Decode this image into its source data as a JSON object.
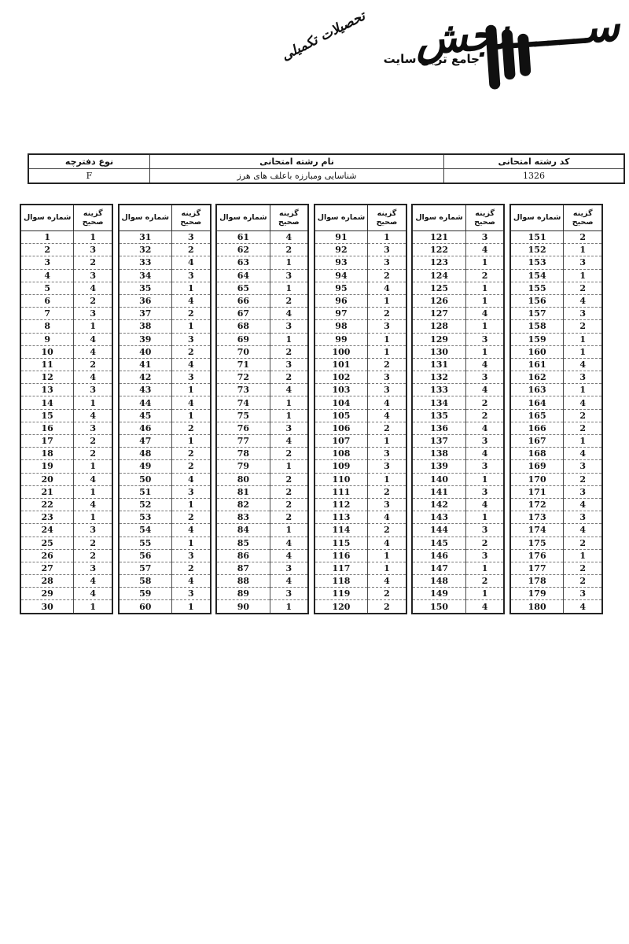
{
  "logo": {
    "brand": "ســــــنجش",
    "tagline": "جامع ترین سایت",
    "tagline_script": "تحصیلات تکمیلی"
  },
  "info": {
    "code_label": "کد رشته امتحانی",
    "name_label": "نام رشته امتحانی",
    "type_label": "نوع دفترچه",
    "code_value": "1326",
    "name_value": "شناسایی ومبارزه باعلف های هرز",
    "type_value": "F"
  },
  "answer_key": {
    "question_header": "شماره سوال",
    "answer_header": "گزینه صحیح",
    "blocks": [
      {
        "entries": [
          [
            1,
            1
          ],
          [
            2,
            3
          ],
          [
            3,
            2
          ],
          [
            4,
            3
          ],
          [
            5,
            4
          ],
          [
            6,
            2
          ],
          [
            7,
            3
          ],
          [
            8,
            1
          ],
          [
            9,
            4
          ],
          [
            10,
            4
          ],
          [
            11,
            2
          ],
          [
            12,
            4
          ],
          [
            13,
            3
          ],
          [
            14,
            1
          ],
          [
            15,
            4
          ],
          [
            16,
            3
          ],
          [
            17,
            2
          ],
          [
            18,
            2
          ],
          [
            19,
            1
          ],
          [
            20,
            4
          ],
          [
            21,
            1
          ],
          [
            22,
            4
          ],
          [
            23,
            1
          ],
          [
            24,
            3
          ],
          [
            25,
            2
          ],
          [
            26,
            2
          ],
          [
            27,
            3
          ],
          [
            28,
            4
          ],
          [
            29,
            4
          ],
          [
            30,
            1
          ]
        ]
      },
      {
        "entries": [
          [
            31,
            3
          ],
          [
            32,
            2
          ],
          [
            33,
            4
          ],
          [
            34,
            3
          ],
          [
            35,
            1
          ],
          [
            36,
            4
          ],
          [
            37,
            2
          ],
          [
            38,
            1
          ],
          [
            39,
            3
          ],
          [
            40,
            2
          ],
          [
            41,
            4
          ],
          [
            42,
            3
          ],
          [
            43,
            1
          ],
          [
            44,
            4
          ],
          [
            45,
            1
          ],
          [
            46,
            2
          ],
          [
            47,
            1
          ],
          [
            48,
            2
          ],
          [
            49,
            2
          ],
          [
            50,
            4
          ],
          [
            51,
            3
          ],
          [
            52,
            1
          ],
          [
            53,
            2
          ],
          [
            54,
            4
          ],
          [
            55,
            1
          ],
          [
            56,
            3
          ],
          [
            57,
            2
          ],
          [
            58,
            4
          ],
          [
            59,
            3
          ],
          [
            60,
            1
          ]
        ]
      },
      {
        "entries": [
          [
            61,
            4
          ],
          [
            62,
            2
          ],
          [
            63,
            1
          ],
          [
            64,
            3
          ],
          [
            65,
            1
          ],
          [
            66,
            2
          ],
          [
            67,
            4
          ],
          [
            68,
            3
          ],
          [
            69,
            1
          ],
          [
            70,
            2
          ],
          [
            71,
            3
          ],
          [
            72,
            2
          ],
          [
            73,
            4
          ],
          [
            74,
            1
          ],
          [
            75,
            1
          ],
          [
            76,
            3
          ],
          [
            77,
            4
          ],
          [
            78,
            2
          ],
          [
            79,
            1
          ],
          [
            80,
            2
          ],
          [
            81,
            2
          ],
          [
            82,
            2
          ],
          [
            83,
            2
          ],
          [
            84,
            1
          ],
          [
            85,
            4
          ],
          [
            86,
            4
          ],
          [
            87,
            3
          ],
          [
            88,
            4
          ],
          [
            89,
            3
          ],
          [
            90,
            1
          ]
        ]
      },
      {
        "entries": [
          [
            91,
            1
          ],
          [
            92,
            3
          ],
          [
            93,
            3
          ],
          [
            94,
            2
          ],
          [
            95,
            4
          ],
          [
            96,
            1
          ],
          [
            97,
            2
          ],
          [
            98,
            3
          ],
          [
            99,
            1
          ],
          [
            100,
            1
          ],
          [
            101,
            2
          ],
          [
            102,
            3
          ],
          [
            103,
            3
          ],
          [
            104,
            4
          ],
          [
            105,
            4
          ],
          [
            106,
            2
          ],
          [
            107,
            1
          ],
          [
            108,
            3
          ],
          [
            109,
            3
          ],
          [
            110,
            1
          ],
          [
            111,
            2
          ],
          [
            112,
            3
          ],
          [
            113,
            4
          ],
          [
            114,
            2
          ],
          [
            115,
            4
          ],
          [
            116,
            1
          ],
          [
            117,
            1
          ],
          [
            118,
            4
          ],
          [
            119,
            2
          ],
          [
            120,
            2
          ]
        ]
      },
      {
        "entries": [
          [
            121,
            3
          ],
          [
            122,
            4
          ],
          [
            123,
            1
          ],
          [
            124,
            2
          ],
          [
            125,
            1
          ],
          [
            126,
            1
          ],
          [
            127,
            4
          ],
          [
            128,
            1
          ],
          [
            129,
            3
          ],
          [
            130,
            1
          ],
          [
            131,
            4
          ],
          [
            132,
            3
          ],
          [
            133,
            4
          ],
          [
            134,
            2
          ],
          [
            135,
            2
          ],
          [
            136,
            4
          ],
          [
            137,
            3
          ],
          [
            138,
            4
          ],
          [
            139,
            3
          ],
          [
            140,
            1
          ],
          [
            141,
            3
          ],
          [
            142,
            4
          ],
          [
            143,
            1
          ],
          [
            144,
            3
          ],
          [
            145,
            2
          ],
          [
            146,
            3
          ],
          [
            147,
            1
          ],
          [
            148,
            2
          ],
          [
            149,
            1
          ],
          [
            150,
            4
          ]
        ]
      },
      {
        "entries": [
          [
            151,
            2
          ],
          [
            152,
            1
          ],
          [
            153,
            3
          ],
          [
            154,
            1
          ],
          [
            155,
            2
          ],
          [
            156,
            4
          ],
          [
            157,
            3
          ],
          [
            158,
            2
          ],
          [
            159,
            1
          ],
          [
            160,
            1
          ],
          [
            161,
            4
          ],
          [
            162,
            3
          ],
          [
            163,
            1
          ],
          [
            164,
            4
          ],
          [
            165,
            2
          ],
          [
            166,
            2
          ],
          [
            167,
            1
          ],
          [
            168,
            4
          ],
          [
            169,
            3
          ],
          [
            170,
            2
          ],
          [
            171,
            3
          ],
          [
            172,
            4
          ],
          [
            173,
            3
          ],
          [
            174,
            4
          ],
          [
            175,
            2
          ],
          [
            176,
            1
          ],
          [
            177,
            2
          ],
          [
            178,
            2
          ],
          [
            179,
            3
          ],
          [
            180,
            4
          ]
        ]
      }
    ]
  }
}
